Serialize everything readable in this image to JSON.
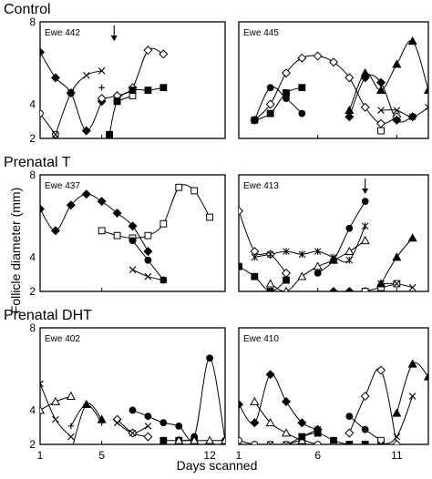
{
  "chart_data": {
    "type": "line",
    "ylabel": "Follicle diameter (mm)",
    "xlabel": "Days scanned",
    "x_range": [
      1,
      13
    ],
    "y_scale": "log",
    "y_range": [
      3,
      8
    ],
    "y_ticks": [
      2,
      4,
      8
    ],
    "grid": false,
    "groups": [
      {
        "title": "Control",
        "panels": [
          {
            "label": "Ewe 442",
            "x_ticks": [
              1,
              5
            ],
            "arrow_day": 5.8,
            "series": [
              {
                "marker": "open-circle",
                "x": [
                  1,
                  2
                ],
                "y": [
                  3.7,
                  3.1
                ]
              },
              {
                "marker": "filled-diamond",
                "x": [
                  1,
                  2,
                  3,
                  4,
                  5
                ],
                "y": [
                  6.2,
                  5.0,
                  4.4,
                  3.2,
                  4.1
                ]
              },
              {
                "marker": "cross",
                "x": [
                  2,
                  3,
                  4,
                  5
                ],
                "y": [
                  3.1,
                  4.4,
                  5.1,
                  5.3
                ]
              },
              {
                "marker": "plus",
                "x": [
                  5
                ],
                "y": [
                  4.6
                ]
              },
              {
                "marker": "open-diamond",
                "x": [
                  5,
                  6,
                  7,
                  8,
                  9
                ],
                "y": [
                  4.2,
                  4.3,
                  4.6,
                  6.3,
                  6.1
                ]
              },
              {
                "marker": "open-square",
                "x": [
                  6,
                  7
                ],
                "y": [
                  4.1,
                  4.3
                ]
              },
              {
                "marker": "filled-square",
                "x": [
                  5.5,
                  6,
                  7,
                  8,
                  9
                ],
                "y": [
                  3.1,
                  4.1,
                  4.5,
                  4.5,
                  4.6
                ]
              }
            ]
          },
          {
            "label": "Ewe 445",
            "x_ticks": [
              1,
              6,
              11
            ],
            "series": [
              {
                "marker": "open-diamond",
                "x": [
                  2,
                  3,
                  4,
                  5,
                  6,
                  7,
                  8,
                  9,
                  10,
                  11
                ],
                "y": [
                  3.5,
                  4.0,
                  5.2,
                  5.9,
                  6.0,
                  5.7,
                  5.0,
                  3.9,
                  3.4,
                  3.6
                ]
              },
              {
                "marker": "filled-square",
                "x": [
                  2,
                  3,
                  4,
                  5
                ],
                "y": [
                  3.5,
                  3.7,
                  4.4,
                  4.6
                ]
              },
              {
                "marker": "filled-circle",
                "x": [
                  2,
                  3,
                  4,
                  5
                ],
                "y": [
                  3.5,
                  4.6,
                  4.2,
                  3.7
                ]
              },
              {
                "marker": "filled-diamond",
                "x": [
                  8,
                  9,
                  10,
                  11,
                  12
                ],
                "y": [
                  3.6,
                  5.0,
                  4.8,
                  3.5,
                  3.6
                ]
              },
              {
                "marker": "filled-triangle",
                "x": [
                  8,
                  9,
                  10,
                  11,
                  12,
                  13
                ],
                "y": [
                  3.8,
                  5.2,
                  4.5,
                  5.6,
                  6.8,
                  4.5
                ]
              },
              {
                "marker": "cross",
                "x": [
                  10,
                  11,
                  12,
                  13
                ],
                "y": [
                  3.8,
                  3.8,
                  3.6,
                  3.9
                ]
              },
              {
                "marker": "open-square",
                "x": [
                  10
                ],
                "y": [
                  3.2
                ]
              }
            ]
          }
        ]
      },
      {
        "title": "Prenatal T",
        "panels": [
          {
            "label": "Ewe 437",
            "x_ticks": [
              1,
              5
            ],
            "series": [
              {
                "marker": "filled-diamond",
                "x": [
                  1,
                  2,
                  3,
                  4,
                  5,
                  6,
                  7,
                  8
                ],
                "y": [
                  6.0,
                  5.0,
                  6.2,
                  6.8,
                  6.4,
                  5.8,
                  5.2,
                  4.2
                ]
              },
              {
                "marker": "open-square",
                "x": [
                  5,
                  6,
                  7,
                  8,
                  9,
                  10,
                  11,
                  12
                ],
                "y": [
                  5.0,
                  4.8,
                  4.7,
                  4.8,
                  5.3,
                  7.2,
                  7.0,
                  5.6
                ]
              },
              {
                "marker": "filled-circle",
                "x": [
                  7,
                  8,
                  9
                ],
                "y": [
                  4.6,
                  3.9,
                  3.3
                ]
              },
              {
                "marker": "cross",
                "x": [
                  7,
                  8,
                  9
                ],
                "y": [
                  3.6,
                  3.4,
                  3.3
                ]
              }
            ]
          },
          {
            "label": "Ewe 413",
            "x_ticks": [
              1,
              6,
              11
            ],
            "arrow_day": 9.0,
            "series": [
              {
                "marker": "open-diamond",
                "x": [
                  1,
                  2,
                  3,
                  4
                ],
                "y": [
                  5.9,
                  4.2,
                  4.1,
                  3.5
                ]
              },
              {
                "marker": "filled-square",
                "x": [
                  1,
                  2,
                  3,
                  4
                ],
                "y": [
                  3.7,
                  3.4,
                  3.0,
                  3.3
                ]
              },
              {
                "marker": "open-triangle",
                "x": [
                  3,
                  4,
                  5,
                  6,
                  7,
                  8,
                  9
                ],
                "y": [
                  3.2,
                  3.0,
                  3.4,
                  3.7,
                  3.9,
                  4.2,
                  4.6
                ]
              },
              {
                "marker": "asterisk",
                "x": [
                  2,
                  3,
                  4,
                  5,
                  6,
                  7,
                  8,
                  9
                ],
                "y": [
                  4.0,
                  4.1,
                  4.2,
                  4.1,
                  4.2,
                  4.0,
                  3.9,
                  5.2
                ]
              },
              {
                "marker": "filled-circle",
                "x": [
                  6,
                  7,
                  8,
                  9
                ],
                "y": [
                  3.5,
                  3.9,
                  5.1,
                  6.4
                ]
              },
              {
                "marker": "filled-diamond",
                "x": [
                  7,
                  8,
                  9
                ],
                "y": [
                  3.0,
                  3.0,
                  3.0
                ]
              },
              {
                "marker": "open-square",
                "x": [
                  9,
                  10,
                  11
                ],
                "y": [
                  3.0,
                  3.1,
                  3.2
                ]
              },
              {
                "marker": "filled-triangle",
                "x": [
                  10,
                  11,
                  12
                ],
                "y": [
                  3.2,
                  4.0,
                  4.7
                ]
              },
              {
                "marker": "cross",
                "x": [
                  10,
                  11,
                  12
                ],
                "y": [
                  3.2,
                  3.2,
                  3.1
                ]
              }
            ]
          }
        ]
      },
      {
        "title": "Prenatal DHT",
        "panels": [
          {
            "label": "Ewe 402",
            "x_ticks": [
              1,
              5,
              12
            ],
            "series": [
              {
                "marker": "cross",
                "x": [
                  1,
                  2,
                  3
                ],
                "y": [
                  5.0,
                  3.7,
                  3.2
                ]
              },
              {
                "marker": "open-triangle",
                "x": [
                  1,
                  2,
                  3
                ],
                "y": [
                  4.0,
                  4.3,
                  4.5
                ]
              },
              {
                "marker": "plus",
                "x": [
                  3,
                  4,
                  5
                ],
                "y": [
                  3.5,
                  4.2,
                  3.6
                ]
              },
              {
                "marker": "filled-triangle",
                "x": [
                  3,
                  4,
                  5
                ],
                "y": [
                  2.8,
                  4.2,
                  3.7
                ]
              },
              {
                "marker": "open-diamond",
                "x": [
                  6,
                  7,
                  8
                ],
                "y": [
                  3.7,
                  3.3,
                  3.2
                ]
              },
              {
                "marker": "cross",
                "x": [
                  6,
                  7,
                  8
                ],
                "y": [
                  3.6,
                  3.3,
                  3.5
                ]
              },
              {
                "marker": "filled-circle",
                "x": [
                  7,
                  8,
                  9,
                  10,
                  11,
                  12,
                  13
                ],
                "y": [
                  4.0,
                  3.8,
                  3.6,
                  3.5,
                  3.2,
                  6.2,
                  3.1
                ]
              },
              {
                "marker": "filled-square",
                "x": [
                  9,
                  10,
                  11
                ],
                "y": [
                  3.1,
                  3.1,
                  3.1
                ]
              },
              {
                "marker": "open-triangle",
                "x": [
                  10,
                  11,
                  12,
                  13
                ],
                "y": [
                  3.1,
                  3.1,
                  3.1,
                  3.1
                ]
              }
            ]
          },
          {
            "label": "Ewe 410",
            "x_ticks": [
              1,
              6,
              11
            ],
            "series": [
              {
                "marker": "open-circle",
                "x": [
                  1,
                  2,
                  3,
                  4,
                  5,
                  6,
                  7
                ],
                "y": [
                  3.1,
                  3.0,
                  3.0,
                  3.0,
                  3.1,
                  3.0,
                  3.0
                ]
              },
              {
                "marker": "filled-diamond",
                "x": [
                  1,
                  2,
                  3,
                  4,
                  5,
                  6
                ],
                "y": [
                  4.2,
                  3.6,
                  5.4,
                  4.3,
                  3.6,
                  3.4
                ]
              },
              {
                "marker": "open-triangle",
                "x": [
                  2,
                  3,
                  4,
                  5
                ],
                "y": [
                  4.3,
                  3.6,
                  3.3,
                  3.1
                ]
              },
              {
                "marker": "cross",
                "x": [
                  3,
                  4,
                  5,
                  6
                ],
                "y": [
                  3.0,
                  3.0,
                  3.2,
                  3.4
                ]
              },
              {
                "marker": "filled-square",
                "x": [
                  5,
                  6,
                  7,
                  8,
                  9
                ],
                "y": [
                  3.2,
                  3.3,
                  3.1,
                  3.0,
                  3.0
                ]
              },
              {
                "marker": "filled-circle",
                "x": [
                  8,
                  9,
                  10
                ],
                "y": [
                  3.8,
                  3.4,
                  3.1
                ]
              },
              {
                "marker": "open-diamond",
                "x": [
                  8,
                  9,
                  10,
                  11
                ],
                "y": [
                  3.3,
                  4.5,
                  5.6,
                  3.0
                ]
              },
              {
                "marker": "open-square",
                "x": [
                  10,
                  11
                ],
                "y": [
                  3.1,
                  2.6
                ]
              },
              {
                "marker": "cross",
                "x": [
                  9,
                  10,
                  11,
                  12
                ],
                "y": [
                  3.0,
                  3.0,
                  3.2,
                  4.5
                ]
              },
              {
                "marker": "filled-triangle",
                "x": [
                  11,
                  12,
                  13
                ],
                "y": [
                  3.9,
                  5.9,
                  5.3
                ]
              }
            ]
          }
        ]
      }
    ]
  }
}
